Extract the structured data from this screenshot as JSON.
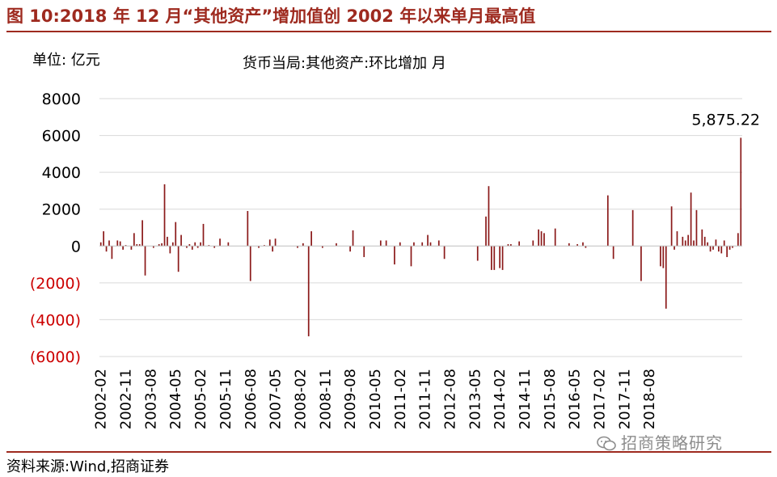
{
  "header": {
    "title": "图 10:2018 年 12 月“其他资产”增加值创 2002 年以来单月最高值"
  },
  "footer": {
    "source": "资料来源:Wind,招商证券",
    "watermark": "招商策略研究"
  },
  "chart_data": {
    "type": "bar",
    "title": "货币当局:其他资产:环比增加 月",
    "unit_label": "单位: 亿元",
    "xlabel": "",
    "ylabel": "",
    "ylim": [
      -6000,
      8000
    ],
    "yticks": [
      8000,
      6000,
      4000,
      2000,
      0,
      -2000,
      -4000,
      -6000
    ],
    "ytick_labels": [
      "8000",
      "6000",
      "4000",
      "2000",
      "0",
      "(2000)",
      "(4000)",
      "(6000)"
    ],
    "negative_label_color": "#cc0000",
    "bar_color": "#8b1a1a",
    "grid": true,
    "x_start": "2002-02",
    "xtick_labels": [
      "2002-02",
      "2002-11",
      "2003-08",
      "2004-05",
      "2005-02",
      "2005-11",
      "2006-08",
      "2007-05",
      "2008-02",
      "2008-11",
      "2009-08",
      "2010-05",
      "2011-02",
      "2011-11",
      "2012-08",
      "2013-05",
      "2014-02",
      "2014-11",
      "2015-08",
      "2016-05",
      "2017-02",
      "2017-11",
      "2018-08"
    ],
    "annotation": {
      "text": "5,875.22",
      "value": 5875.22
    },
    "values": [
      200,
      800,
      -300,
      300,
      -700,
      0,
      300,
      250,
      -200,
      50,
      0,
      -200,
      700,
      100,
      100,
      1400,
      -1600,
      0,
      0,
      -100,
      0,
      100,
      150,
      3350,
      500,
      -400,
      200,
      1300,
      -1400,
      600,
      0,
      -100,
      100,
      -200,
      200,
      -100,
      200,
      1200,
      0,
      50,
      0,
      -100,
      0,
      400,
      0,
      0,
      200,
      0,
      0,
      0,
      0,
      0,
      0,
      1900,
      -1900,
      0,
      0,
      -100,
      0,
      50,
      0,
      350,
      -300,
      400,
      0,
      0,
      0,
      0,
      0,
      0,
      0,
      -100,
      0,
      150,
      0,
      -4900,
      800,
      0,
      0,
      0,
      -100,
      0,
      0,
      0,
      0,
      150,
      0,
      0,
      0,
      0,
      -300,
      850,
      0,
      0,
      0,
      -600,
      0,
      0,
      0,
      0,
      0,
      300,
      0,
      300,
      0,
      0,
      -1000,
      0,
      200,
      0,
      0,
      0,
      -1100,
      200,
      0,
      0,
      200,
      0,
      600,
      200,
      0,
      0,
      300,
      0,
      -700,
      0,
      0,
      0,
      0,
      0,
      0,
      0,
      0,
      0,
      0,
      0,
      -800,
      0,
      0,
      1600,
      3250,
      -1300,
      -1300,
      0,
      -1200,
      -1300,
      0,
      100,
      100,
      0,
      0,
      250,
      0,
      0,
      0,
      0,
      300,
      0,
      900,
      800,
      700,
      0,
      0,
      0,
      950,
      0,
      0,
      0,
      0,
      150,
      0,
      0,
      100,
      0,
      200,
      -100,
      0,
      0,
      0,
      0,
      0,
      0,
      0,
      2750,
      0,
      -700,
      0,
      0,
      0,
      0,
      0,
      0,
      1950,
      0,
      0,
      -1900,
      0,
      0,
      0,
      0,
      0,
      0,
      -1100,
      -1200,
      -3400,
      0,
      2150,
      -200,
      800,
      0,
      500,
      300,
      600,
      2900,
      300,
      1950,
      0,
      900,
      500,
      200,
      -300,
      -200,
      350,
      -300,
      -400,
      300,
      -600,
      -200,
      -100,
      0,
      700,
      5875.22
    ]
  }
}
